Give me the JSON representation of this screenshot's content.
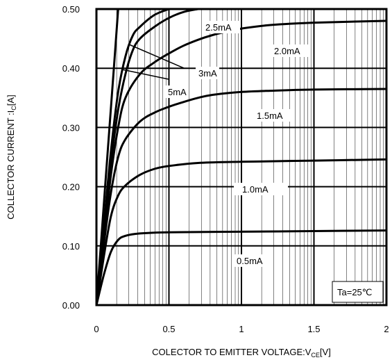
{
  "chart_data": {
    "type": "line",
    "xlabel": {
      "main": "COLECTOR TO EMITTER VOLTAGE:V",
      "sub": "CE",
      "suffix": "[V]"
    },
    "ylabel": {
      "main": "COLLECTOR CURRENT :I",
      "sub": "C",
      "suffix": "[A]"
    },
    "xlim": [
      0,
      2
    ],
    "ylim": [
      0,
      0.5
    ],
    "x_ticks": [
      0,
      0.5,
      1,
      1.5,
      2
    ],
    "x_tick_labels": [
      "0",
      "0.5",
      "1",
      "1.5",
      "2"
    ],
    "y_ticks": [
      0,
      0.1,
      0.2,
      0.3,
      0.4,
      0.5
    ],
    "y_tick_labels": [
      "0.00",
      "0.10",
      "0.20",
      "0.30",
      "0.40",
      "0.50"
    ],
    "grid": true,
    "annotation": "Ta=25℃",
    "series": [
      {
        "name": "0.5mA",
        "x": [
          0,
          0.05,
          0.1,
          0.15,
          0.2,
          0.3,
          0.5,
          1.0,
          1.5,
          2.0
        ],
        "y": [
          0,
          0.05,
          0.09,
          0.11,
          0.117,
          0.121,
          0.123,
          0.124,
          0.125,
          0.126
        ]
      },
      {
        "name": "1.0mA",
        "x": [
          0,
          0.05,
          0.1,
          0.15,
          0.2,
          0.3,
          0.4,
          0.5,
          0.7,
          1.0,
          1.5,
          2.0
        ],
        "y": [
          0,
          0.08,
          0.15,
          0.185,
          0.202,
          0.22,
          0.23,
          0.235,
          0.24,
          0.242,
          0.244,
          0.246
        ]
      },
      {
        "name": "1.5mA",
        "x": [
          0,
          0.05,
          0.1,
          0.15,
          0.2,
          0.3,
          0.4,
          0.5,
          0.6,
          0.7,
          0.8,
          1.0,
          1.2,
          1.5,
          2.0
        ],
        "y": [
          0,
          0.1,
          0.19,
          0.25,
          0.28,
          0.31,
          0.325,
          0.335,
          0.343,
          0.35,
          0.355,
          0.36,
          0.362,
          0.364,
          0.365
        ]
      },
      {
        "name": "2.0mA",
        "x": [
          0,
          0.05,
          0.1,
          0.15,
          0.2,
          0.3,
          0.4,
          0.5,
          0.6,
          0.7,
          0.8,
          0.9,
          1.0,
          1.2,
          1.5,
          2.0
        ],
        "y": [
          0,
          0.11,
          0.22,
          0.3,
          0.35,
          0.39,
          0.41,
          0.425,
          0.438,
          0.448,
          0.456,
          0.462,
          0.467,
          0.473,
          0.477,
          0.48
        ]
      },
      {
        "name": "2.5mA",
        "x": [
          0,
          0.05,
          0.1,
          0.15,
          0.2,
          0.25,
          0.3,
          0.4,
          0.5,
          0.6,
          0.7
        ],
        "y": [
          0,
          0.12,
          0.24,
          0.33,
          0.39,
          0.43,
          0.45,
          0.47,
          0.485,
          0.495,
          0.5
        ]
      },
      {
        "name": "3mA",
        "x": [
          0,
          0.05,
          0.1,
          0.15,
          0.2,
          0.25,
          0.3,
          0.4,
          0.5
        ],
        "y": [
          0,
          0.13,
          0.26,
          0.36,
          0.42,
          0.455,
          0.47,
          0.49,
          0.5
        ]
      },
      {
        "name": "5mA",
        "x": [
          0,
          0.03,
          0.06,
          0.09,
          0.12,
          0.15
        ],
        "y": [
          0,
          0.1,
          0.2,
          0.3,
          0.4,
          0.5
        ]
      }
    ],
    "curve_labels": [
      "2.5mA",
      "2.0mA",
      "3mA",
      "5mA",
      "1.5mA",
      "1.0mA",
      "0.5mA"
    ]
  }
}
